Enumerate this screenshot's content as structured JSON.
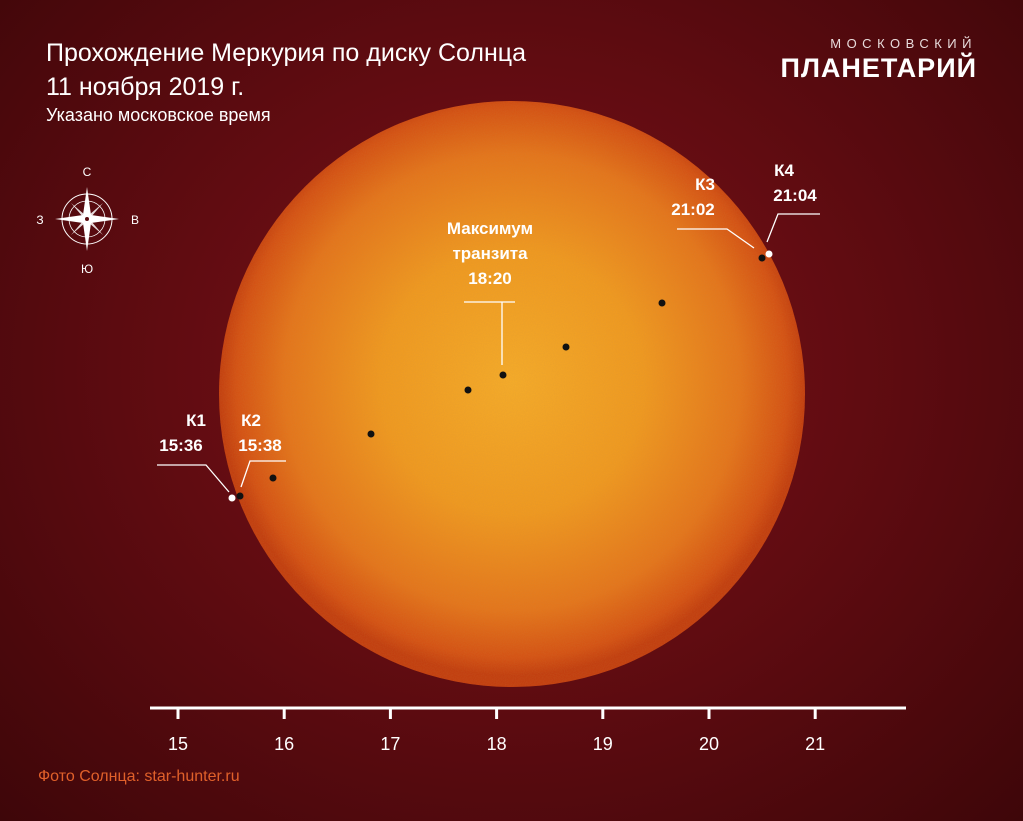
{
  "header": {
    "title_line1": "Прохождение Меркурия по диску Солнца",
    "title_line2": "11 ноября 2019 г.",
    "subtitle": "Указано московское время"
  },
  "brand": {
    "top": "МОСКОВСКИЙ",
    "main": "ПЛАНЕТАРИЙ"
  },
  "compass": {
    "north": "С",
    "south": "Ю",
    "west": "З",
    "east": "В"
  },
  "events": {
    "k1": {
      "name": "К1",
      "time": "15:36"
    },
    "k2": {
      "name": "К2",
      "time": "15:38"
    },
    "max": {
      "line1": "Максимум",
      "line2": "транзита",
      "time": "18:20"
    },
    "k3": {
      "name": "К3",
      "time": "21:02"
    },
    "k4": {
      "name": "К4",
      "time": "21:04"
    }
  },
  "timeline": {
    "ticks": [
      "15",
      "16",
      "17",
      "18",
      "19",
      "20",
      "21"
    ]
  },
  "credit": "Фото Солнца: star-hunter.ru",
  "colors": {
    "background": "#5c0b10",
    "sun_center": "#f5a623",
    "sun_edge": "#c8360e",
    "credit": "#e0602a"
  }
}
